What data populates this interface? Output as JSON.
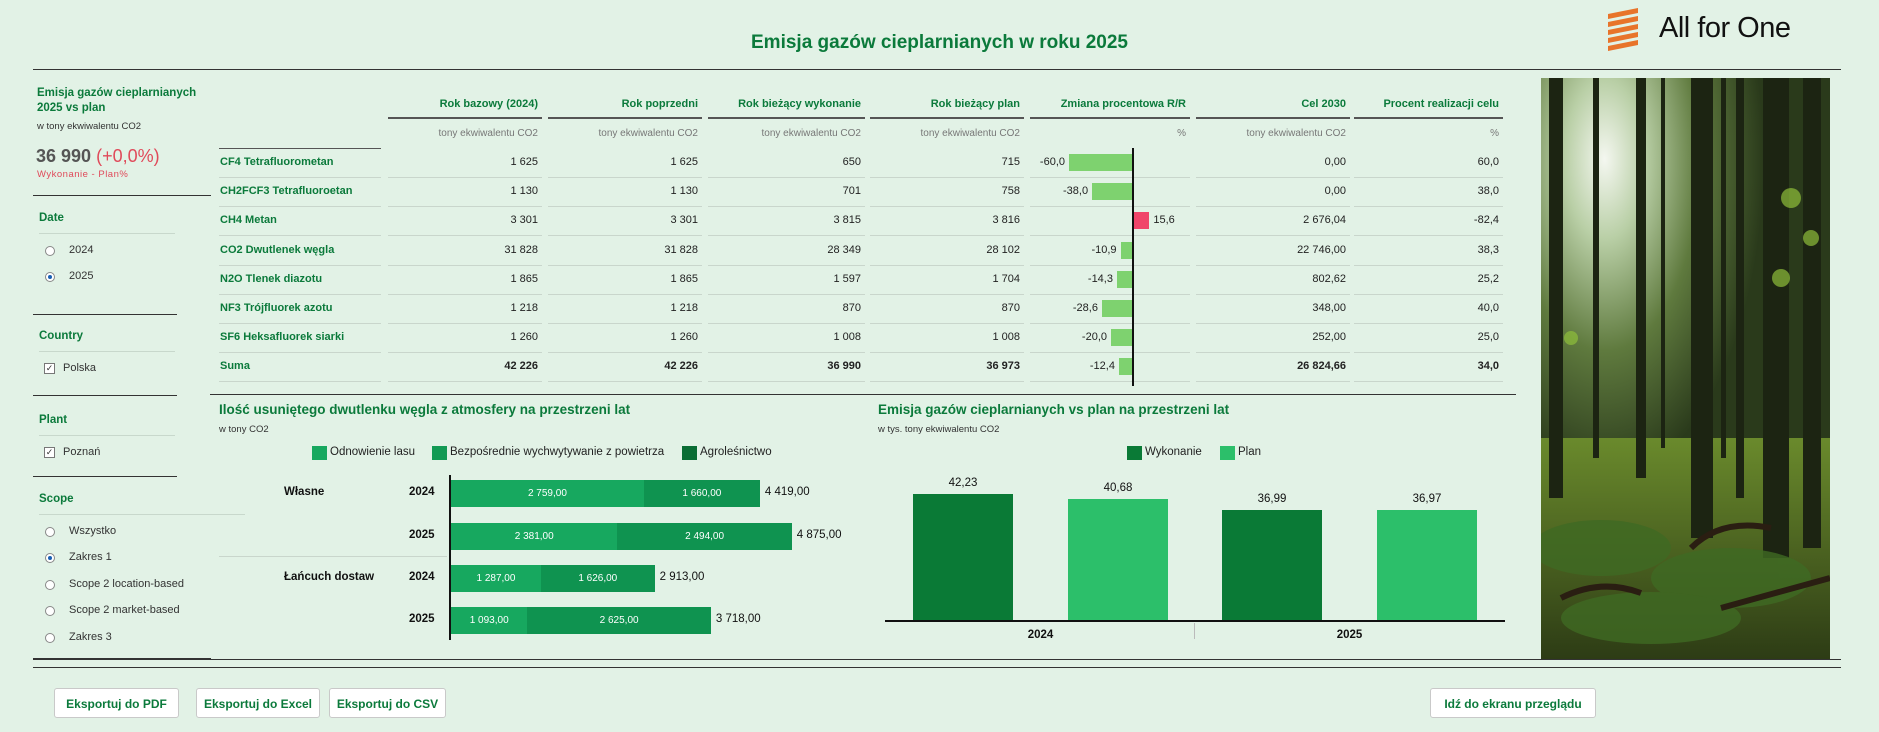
{
  "title": "Emisja gazów cieplarnianych w roku 2025",
  "logo": {
    "text": "All for One",
    "color": "#e8742a"
  },
  "sidebar": {
    "kpi_title": "Emisja gazów cieplarnianych 2025 vs plan",
    "kpi_unit": "w tony ekwiwalentu CO2",
    "kpi_value": "36 990",
    "kpi_change": "(+0,0%)",
    "kpi_label": "Wykonanie - Plan%",
    "date": {
      "title": "Date",
      "options": [
        {
          "label": "2024",
          "selected": false
        },
        {
          "label": "2025",
          "selected": true
        }
      ]
    },
    "country": {
      "title": "Country",
      "options": [
        {
          "label": "Polska",
          "checked": true
        }
      ]
    },
    "plant": {
      "title": "Plant",
      "options": [
        {
          "label": "Poznań",
          "checked": true
        }
      ]
    },
    "scope": {
      "title": "Scope",
      "options": [
        {
          "label": "Wszystko",
          "selected": false
        },
        {
          "label": "Zakres 1",
          "selected": true
        },
        {
          "label": "Scope 2 location-based",
          "selected": false
        },
        {
          "label": "Scope 2 market-based",
          "selected": false
        },
        {
          "label": "Zakres 3",
          "selected": false
        }
      ]
    }
  },
  "table": {
    "columns": [
      "Rok bazowy (2024)",
      "Rok poprzedni",
      "Rok bieżący wykonanie",
      "Rok bieżący plan",
      "Zmiana procentowa R/R",
      "Cel 2030",
      "Procent realizacji celu"
    ],
    "units": [
      "tony ekwiwalentu CO2",
      "tony ekwiwalentu CO2",
      "tony ekwiwalentu CO2",
      "tony ekwiwalentu CO2",
      "%",
      "tony ekwiwalentu CO2",
      "%"
    ],
    "rows": [
      {
        "label": "CF4 Tetrafluorometan",
        "base": "1 625",
        "prev": "1 625",
        "actual": "650",
        "plan": "715",
        "change": -60.0,
        "change_text": "-60,0",
        "target": "0,00",
        "pct": "60,0"
      },
      {
        "label": "CH2FCF3 Tetrafluoroetan",
        "base": "1 130",
        "prev": "1 130",
        "actual": "701",
        "plan": "758",
        "change": -38.0,
        "change_text": "-38,0",
        "target": "0,00",
        "pct": "38,0"
      },
      {
        "label": "CH4 Metan",
        "base": "3 301",
        "prev": "3 301",
        "actual": "3 815",
        "plan": "3 816",
        "change": 15.6,
        "change_text": "15,6",
        "target": "2 676,04",
        "pct": "-82,4"
      },
      {
        "label": "CO2 Dwutlenek węgla",
        "base": "31 828",
        "prev": "31 828",
        "actual": "28 349",
        "plan": "28 102",
        "change": -10.9,
        "change_text": "-10,9",
        "target": "22 746,00",
        "pct": "38,3"
      },
      {
        "label": "N2O Tlenek diazotu",
        "base": "1 865",
        "prev": "1 865",
        "actual": "1 597",
        "plan": "1 704",
        "change": -14.3,
        "change_text": "-14,3",
        "target": "802,62",
        "pct": "25,2"
      },
      {
        "label": "NF3 Trójfluorek azotu",
        "base": "1 218",
        "prev": "1 218",
        "actual": "870",
        "plan": "870",
        "change": -28.6,
        "change_text": "-28,6",
        "target": "348,00",
        "pct": "40,0"
      },
      {
        "label": "SF6 Heksafluorek siarki",
        "base": "1 260",
        "prev": "1 260",
        "actual": "1 008",
        "plan": "1 008",
        "change": -20.0,
        "change_text": "-20,0",
        "target": "252,00",
        "pct": "25,0"
      },
      {
        "label": "Suma",
        "base": "42 226",
        "prev": "42 226",
        "actual": "36 990",
        "plan": "36 973",
        "change": -12.4,
        "change_text": "-12,4",
        "target": "26 824,66",
        "pct": "34,0",
        "bold": true
      }
    ]
  },
  "chart_data": [
    {
      "type": "bar",
      "orientation": "horizontal",
      "stacked": true,
      "title": "Ilość usuniętego dwutlenku węgla z atmosfery na przestrzeni lat",
      "subtitle": "w tony CO2",
      "groups": [
        "Własne",
        "Łańcuch dostaw"
      ],
      "categories": [
        "2024",
        "2025",
        "2024",
        "2025"
      ],
      "category_groups": [
        "Własne",
        "Własne",
        "Łańcuch dostaw",
        "Łańcuch dostaw"
      ],
      "series": [
        {
          "name": "Odnowienie lasu",
          "color": "#17a85f",
          "values": [
            2759,
            2381,
            1287,
            1093
          ],
          "labels": [
            "2 759,00",
            "2 381,00",
            "1 287,00",
            "1 093,00"
          ]
        },
        {
          "name": "Bezpośrednie wychwytywanie z powietrza",
          "color": "#129a54",
          "values": [
            1660,
            2494,
            1626,
            2625
          ],
          "labels": [
            "1 660,00",
            "2 494,00",
            "1 626,00",
            "2 625,00"
          ]
        },
        {
          "name": "Agroleśnictwo",
          "color": "#0a6d34",
          "values": [
            0,
            0,
            0,
            0
          ],
          "labels": [
            "",
            "",
            "",
            ""
          ]
        }
      ],
      "totals": [
        "4 419,00",
        "4 875,00",
        "2 913,00",
        "3 718,00"
      ],
      "total_values": [
        4419,
        4875,
        2913,
        3718
      ],
      "legend": "top"
    },
    {
      "type": "bar",
      "title": "Emisja gazów cieplarnianych vs plan na przestrzeni lat",
      "subtitle": "w tys. tony ekwiwalentu CO2",
      "categories": [
        "2024",
        "2025"
      ],
      "series": [
        {
          "name": "Wykonanie",
          "color": "#0a7a36",
          "values": [
            42.23,
            36.99
          ],
          "labels": [
            "42,23",
            "36,99"
          ]
        },
        {
          "name": "Plan",
          "color": "#2cbf6a",
          "values": [
            40.68,
            36.97
          ],
          "labels": [
            "40,68",
            "36,97"
          ]
        }
      ],
      "legend": "top"
    }
  ],
  "buttons": {
    "pdf": "Eksportuj do PDF",
    "excel": "Eksportuj do Excel",
    "csv": "Eksportuj do CSV",
    "overview": "Idź do ekranu przeglądu"
  }
}
